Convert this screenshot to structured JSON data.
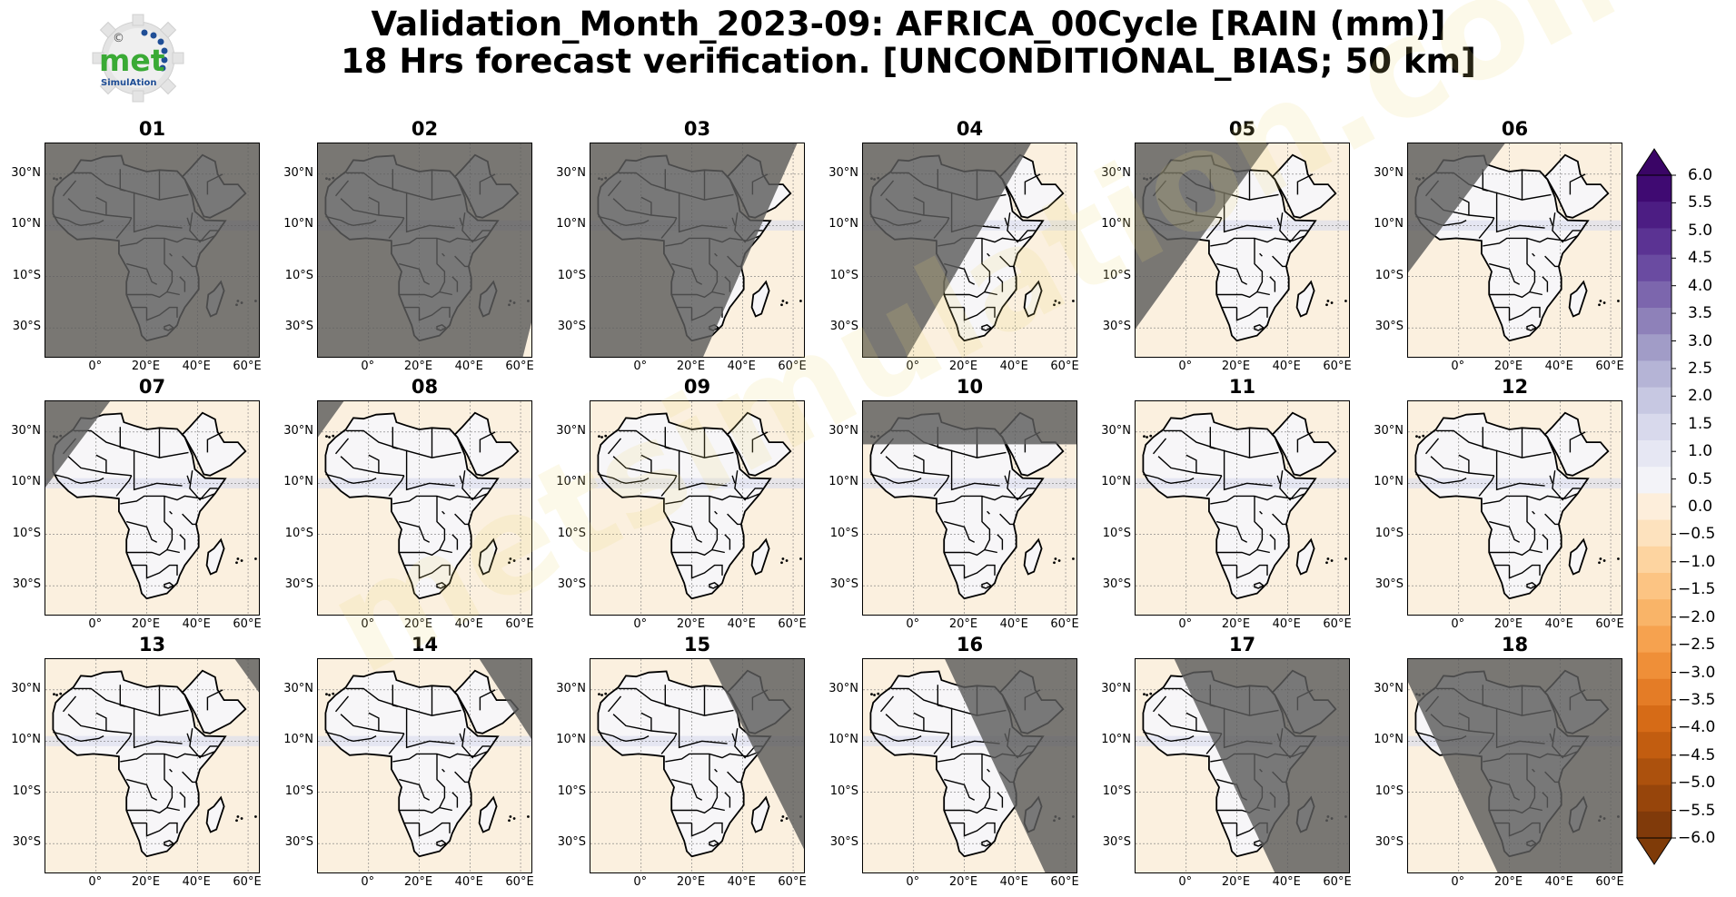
{
  "figure": {
    "title_line1": "Validation_Month_2023-09: AFRICA_00Cycle [RAIN (mm)]",
    "title_line2": "18 Hrs forecast verification. [UNCONDITIONAL_BIAS; 50 km]"
  },
  "logo": {
    "text_main": "met",
    "text_sub": "SimulAtion",
    "mark": "©"
  },
  "watermark": {
    "text": "metsimulation.com"
  },
  "axes": {
    "lat_ticks": [
      "30°N",
      "10°N",
      "10°S",
      "30°S"
    ],
    "lon_ticks": [
      "0°",
      "20°E",
      "40°E",
      "60°E"
    ]
  },
  "panels": [
    {
      "label": "01",
      "shade": "full"
    },
    {
      "label": "02",
      "shade": "west",
      "edge_top": 1.2,
      "edge_bottom": 0.95
    },
    {
      "label": "03",
      "shade": "west",
      "edge_top": 0.96,
      "edge_bottom": 0.52
    },
    {
      "label": "04",
      "shade": "west",
      "edge_top": 0.78,
      "edge_bottom": 0.2
    },
    {
      "label": "05",
      "shade": "west",
      "edge_top": 0.62,
      "edge_bottom": -0.1
    },
    {
      "label": "06",
      "shade": "west",
      "edge_top": 0.45,
      "edge_bottom": -0.3
    },
    {
      "label": "07",
      "shade": "west",
      "edge_top": 0.3,
      "edge_bottom": -0.45
    },
    {
      "label": "08",
      "shade": "west",
      "edge_top": 0.12,
      "edge_bottom": -0.6
    },
    {
      "label": "09",
      "shade": "none"
    },
    {
      "label": "10",
      "shade": "north",
      "edge_level": 0.2
    },
    {
      "label": "11",
      "shade": "none"
    },
    {
      "label": "12",
      "shade": "none"
    },
    {
      "label": "13",
      "shade": "east",
      "edge_top": 0.88,
      "edge_bottom": 1.6
    },
    {
      "label": "14",
      "shade": "east",
      "edge_top": 0.75,
      "edge_bottom": 1.4
    },
    {
      "label": "15",
      "shade": "east",
      "edge_top": 0.55,
      "edge_bottom": 1.05
    },
    {
      "label": "16",
      "shade": "east",
      "edge_top": 0.38,
      "edge_bottom": 0.85
    },
    {
      "label": "17",
      "shade": "east",
      "edge_top": 0.18,
      "edge_bottom": 0.65
    },
    {
      "label": "18",
      "shade": "east",
      "edge_top": -0.05,
      "edge_bottom": 0.42
    }
  ],
  "colorbar": {
    "extend": "both",
    "labels": [
      "6.0",
      "5.5",
      "5.0",
      "4.5",
      "4.0",
      "3.5",
      "3.0",
      "2.5",
      "2.0",
      "1.5",
      "1.0",
      "0.5",
      "0.0",
      "−0.5",
      "−1.0",
      "−1.5",
      "−2.0",
      "−2.5",
      "−3.0",
      "−3.5",
      "−4.0",
      "−4.5",
      "−5.0",
      "−5.5",
      "−6.0"
    ],
    "colors": [
      "#3f0a72",
      "#4c1d83",
      "#5b3393",
      "#6a4ba1",
      "#7c66ad",
      "#8e81b9",
      "#a19cc7",
      "#b5b4d6",
      "#c7c8e2",
      "#d8d9ec",
      "#e6e7f3",
      "#f3f3f8",
      "#fdeedb",
      "#fde2be",
      "#fdd4a0",
      "#fcc483",
      "#f9b468",
      "#f6a24f",
      "#ef8f38",
      "#e47c26",
      "#d66b17",
      "#c25d10",
      "#ac510d",
      "#97450b",
      "#803a0a"
    ],
    "top_tip_color": "#3a0566",
    "bottom_tip_color": "#7f3b08"
  },
  "colors": {
    "shade_overlay": "#5c5c5c",
    "land_fill": "#f7f6f8",
    "ocean_fill": "#fbf0df"
  }
}
